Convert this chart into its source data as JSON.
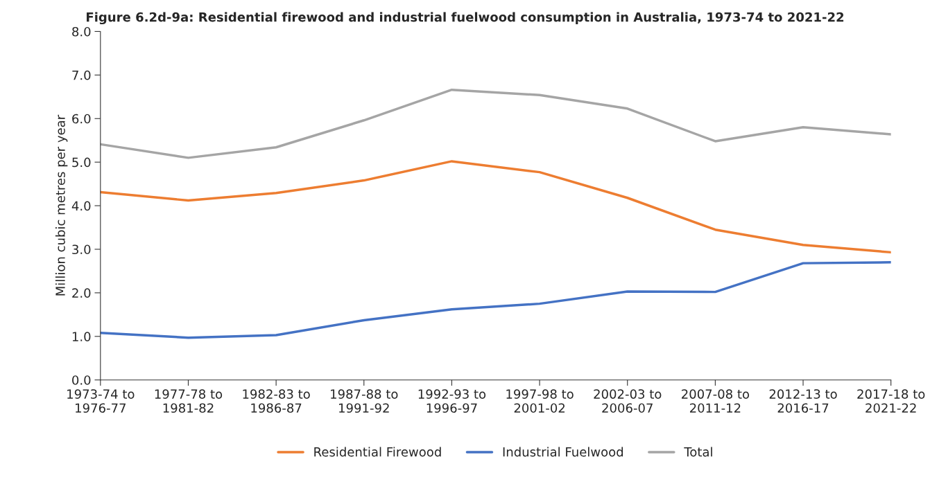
{
  "chart_data": {
    "type": "line",
    "title": "Figure 6.2d-9a: Residential firewood and industrial fuelwood consumption in Australia, 1973-74 to 2021-22",
    "ylabel": "Million cubic metres per year",
    "categories": [
      "1973-74 to\n1976-77",
      "1977-78 to\n1981-82",
      "1982-83 to\n1986-87",
      "1987-88 to\n1991-92",
      "1992-93 to\n1996-97",
      "1997-98 to\n2001-02",
      "2002-03 to\n2006-07",
      "2007-08 to\n2011-12",
      "2012-13 to\n2016-17",
      "2017-18 to\n2021-22"
    ],
    "series": [
      {
        "name": "Residential Firewood",
        "color": "#ed7d31",
        "values": [
          4.31,
          4.12,
          4.29,
          4.58,
          5.02,
          4.77,
          4.18,
          3.45,
          3.1,
          2.93
        ]
      },
      {
        "name": "Industrial Fuelwood",
        "color": "#4472c4",
        "values": [
          1.08,
          0.97,
          1.03,
          1.37,
          1.62,
          1.75,
          2.03,
          2.02,
          2.68,
          2.7
        ]
      },
      {
        "name": "Total",
        "color": "#a5a5a5",
        "values": [
          5.41,
          5.1,
          5.34,
          5.96,
          6.66,
          6.54,
          6.23,
          5.48,
          5.8,
          5.64
        ]
      }
    ],
    "ylim": [
      0,
      8
    ],
    "yticks": [
      {
        "value": 0,
        "label": "0.0"
      },
      {
        "value": 1,
        "label": "1.0"
      },
      {
        "value": 2,
        "label": "2.0"
      },
      {
        "value": 3,
        "label": "3.0"
      },
      {
        "value": 4,
        "label": "4.0"
      },
      {
        "value": 5,
        "label": "5.0"
      },
      {
        "value": 6,
        "label": "6.0"
      },
      {
        "value": 7,
        "label": "7.0"
      },
      {
        "value": 8,
        "label": "8.0"
      }
    ],
    "grid": false,
    "legend": "bottom",
    "marker": "none",
    "line_style": "solid"
  }
}
